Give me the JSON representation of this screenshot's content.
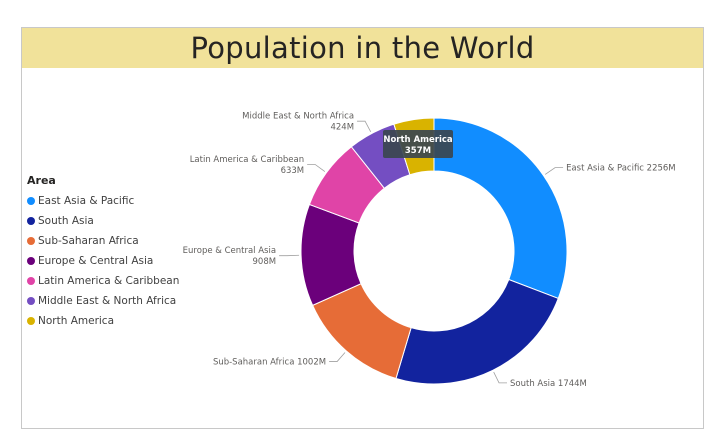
{
  "title": "Population in the World",
  "legend": {
    "title": "Area",
    "items": [
      {
        "label": "East Asia & Pacific",
        "color": "#118DFF"
      },
      {
        "label": "South Asia",
        "color": "#12239E"
      },
      {
        "label": "Sub-Saharan Africa",
        "color": "#E66C37"
      },
      {
        "label": "Europe & Central Asia",
        "color": "#6B007B"
      },
      {
        "label": "Latin America & Caribbean",
        "color": "#E044A7"
      },
      {
        "label": "Middle East & North Africa",
        "color": "#744EC2"
      },
      {
        "label": "North America",
        "color": "#D9B300"
      }
    ]
  },
  "tooltip": {
    "name": "North America",
    "value": "357M"
  },
  "chart_data": {
    "type": "pie",
    "subtype": "donut",
    "title": "Population in the World",
    "legend_title": "Area",
    "legend_position": "left",
    "unit": "M",
    "categories": [
      "East Asia & Pacific",
      "South Asia",
      "Sub-Saharan Africa",
      "Europe & Central Asia",
      "Latin America & Caribbean",
      "Middle East & North Africa",
      "North America"
    ],
    "values": [
      2256,
      1744,
      1002,
      908,
      633,
      424,
      357
    ],
    "data_labels": [
      "East Asia & Pacific 2256M",
      "South Asia 1744M",
      "Sub-Saharan Africa 1002M",
      "Europe & Central Asia|908M",
      "Latin America & Caribbean|633M",
      "Middle East & North Africa|424M",
      ""
    ]
  }
}
